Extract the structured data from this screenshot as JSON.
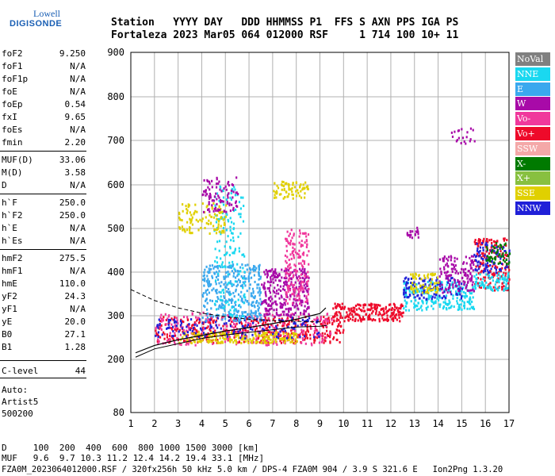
{
  "logo": {
    "line1": "Lowell",
    "line2": "DIGISONDE"
  },
  "header": {
    "line1": "Station   YYYY DAY   DDD HHMMSS P1  FFS S AXN PPS IGA PS",
    "line2": "Fortaleza 2023 Mar05 064 012000 RSF     1 714 100 10+ 11"
  },
  "params": [
    {
      "label": "foF2",
      "value": "9.250"
    },
    {
      "label": "foF1",
      "value": "N/A"
    },
    {
      "label": "foF1p",
      "value": "N/A"
    },
    {
      "label": "foE",
      "value": "N/A"
    },
    {
      "label": "foEp",
      "value": "0.54"
    },
    {
      "label": "fxI",
      "value": "9.65"
    },
    {
      "label": "foEs",
      "value": "N/A"
    },
    {
      "label": "fmin",
      "value": "2.20"
    },
    {
      "label": "MUF(D)",
      "value": "33.06"
    },
    {
      "label": "M(D)",
      "value": "3.58"
    },
    {
      "label": "D",
      "value": "N/A"
    },
    {
      "label": "h`F",
      "value": "250.0"
    },
    {
      "label": "h`F2",
      "value": "250.0"
    },
    {
      "label": "h`E",
      "value": "N/A"
    },
    {
      "label": "h`Es",
      "value": "N/A"
    },
    {
      "label": "hmF2",
      "value": "275.5"
    },
    {
      "label": "hmF1",
      "value": "N/A"
    },
    {
      "label": "hmE",
      "value": "110.0"
    },
    {
      "label": "yF2",
      "value": "24.3"
    },
    {
      "label": "yF1",
      "value": "N/A"
    },
    {
      "label": "yE",
      "value": "20.0"
    },
    {
      "label": "B0",
      "value": "27.1"
    },
    {
      "label": "B1",
      "value": "1.28"
    },
    {
      "label": "C-level",
      "value": "44"
    }
  ],
  "auto": {
    "line1": "Auto:",
    "line2": "Artist5",
    "line3": "500200"
  },
  "legend": [
    {
      "label": "NoVal",
      "color": "#808080"
    },
    {
      "label": "NNE",
      "color": "#1ad8f0"
    },
    {
      "label": "E",
      "color": "#3aa8ee"
    },
    {
      "label": "W",
      "color": "#a80aa8"
    },
    {
      "label": "Vo-",
      "color": "#f0389c"
    },
    {
      "label": "Vo+",
      "color": "#ee0a2a"
    },
    {
      "label": "SSW",
      "color": "#f4a8a8"
    },
    {
      "label": "X-",
      "color": "#007a00"
    },
    {
      "label": "X+",
      "color": "#88c040"
    },
    {
      "label": "SSE",
      "color": "#e0d000"
    },
    {
      "label": "NNW",
      "color": "#2020d8"
    }
  ],
  "bottom": {
    "d_row": "D     100  200  400  600  800 1000 1500 3000 [km]",
    "muf_row": "MUF   9.6  9.7 10.3 11.2 12.4 14.2 19.4 33.1 [MHz]",
    "footer": "FZA0M_2023064012000.RSF / 320fx256h 50 kHz 5.0 km / DPS-4 FZA0M 904 / 3.9 S 321.6 E   Ion2Png 1.3.20"
  },
  "chart_data": {
    "type": "scatter",
    "x_ticks": [
      1,
      2,
      3,
      4,
      5,
      6,
      7,
      8,
      9,
      10,
      11,
      12,
      13,
      14,
      15,
      16,
      17
    ],
    "y_ticks": [
      80,
      200,
      300,
      400,
      500,
      600,
      700,
      800,
      900
    ],
    "xlim": [
      1,
      17
    ],
    "ylim": [
      80,
      900
    ],
    "grid": true,
    "legend_position": "right",
    "trace": {
      "name": "O-trace profile",
      "points": [
        [
          1.2,
          215
        ],
        [
          2,
          232
        ],
        [
          3,
          245
        ],
        [
          4,
          255
        ],
        [
          5,
          265
        ],
        [
          6,
          273
        ],
        [
          7,
          282
        ],
        [
          8,
          292
        ],
        [
          9,
          305
        ],
        [
          9.25,
          318
        ]
      ]
    },
    "profile_line": {
      "points": [
        [
          1.2,
          205
        ],
        [
          2,
          224
        ],
        [
          3,
          236
        ],
        [
          4,
          248
        ],
        [
          5,
          256
        ],
        [
          6,
          262
        ],
        [
          7,
          268
        ],
        [
          8,
          274
        ],
        [
          9,
          276
        ],
        [
          9.3,
          278
        ]
      ]
    },
    "dashed_line": {
      "points": [
        [
          1,
          360
        ],
        [
          2,
          335
        ],
        [
          3,
          318
        ],
        [
          4,
          306
        ],
        [
          5,
          298
        ],
        [
          6,
          292
        ],
        [
          7,
          289
        ],
        [
          8,
          287
        ],
        [
          9,
          286
        ]
      ]
    },
    "clusters": [
      {
        "color": "#ee0a2a",
        "x0": 2.0,
        "x1": 10.0,
        "y0": 240,
        "y1": 300,
        "count": 420
      },
      {
        "color": "#f0389c",
        "x0": 2.0,
        "x1": 9.5,
        "y0": 235,
        "y1": 310,
        "count": 260
      },
      {
        "color": "#e0d000",
        "x0": 3.0,
        "x1": 8.0,
        "y0": 240,
        "y1": 265,
        "count": 200
      },
      {
        "color": "#2020d8",
        "x0": 2.0,
        "x1": 9.0,
        "y0": 250,
        "y1": 300,
        "count": 150
      },
      {
        "color": "#3aa8ee",
        "x0": 4.0,
        "x1": 6.5,
        "y0": 290,
        "y1": 420,
        "count": 340
      },
      {
        "color": "#1ad8f0",
        "x0": 4.5,
        "x1": 5.8,
        "y0": 300,
        "y1": 600,
        "count": 160
      },
      {
        "color": "#a80aa8",
        "x0": 6.5,
        "x1": 8.5,
        "y0": 300,
        "y1": 410,
        "count": 300
      },
      {
        "color": "#f0389c",
        "x0": 7.5,
        "x1": 8.5,
        "y0": 330,
        "y1": 500,
        "count": 170
      },
      {
        "color": "#e0d000",
        "x0": 3.0,
        "x1": 5.0,
        "y0": 490,
        "y1": 560,
        "count": 110
      },
      {
        "color": "#a80aa8",
        "x0": 4.0,
        "x1": 5.5,
        "y0": 540,
        "y1": 620,
        "count": 90
      },
      {
        "color": "#e0d000",
        "x0": 7.0,
        "x1": 8.5,
        "y0": 570,
        "y1": 610,
        "count": 70
      },
      {
        "color": "#ee0a2a",
        "x0": 9.5,
        "x1": 12.5,
        "y0": 290,
        "y1": 330,
        "count": 220
      },
      {
        "color": "#1ad8f0",
        "x0": 12.5,
        "x1": 15.5,
        "y0": 315,
        "y1": 380,
        "count": 230
      },
      {
        "color": "#2020d8",
        "x0": 12.5,
        "x1": 15.0,
        "y0": 340,
        "y1": 390,
        "count": 120
      },
      {
        "color": "#a80aa8",
        "x0": 14.0,
        "x1": 15.5,
        "y0": 355,
        "y1": 440,
        "count": 130
      },
      {
        "color": "#e0d000",
        "x0": 12.8,
        "x1": 14.0,
        "y0": 355,
        "y1": 400,
        "count": 70
      },
      {
        "color": "#ee0a2a",
        "x0": 15.5,
        "x1": 17.0,
        "y0": 360,
        "y1": 480,
        "count": 170
      },
      {
        "color": "#2020d8",
        "x0": 15.5,
        "x1": 17.0,
        "y0": 400,
        "y1": 470,
        "count": 90
      },
      {
        "color": "#1ad8f0",
        "x0": 15.5,
        "x1": 17.0,
        "y0": 360,
        "y1": 400,
        "count": 80
      },
      {
        "color": "#007a00",
        "x0": 16.0,
        "x1": 17.0,
        "y0": 420,
        "y1": 470,
        "count": 50
      },
      {
        "color": "#a80aa8",
        "x0": 14.5,
        "x1": 15.7,
        "y0": 695,
        "y1": 735,
        "count": 20
      },
      {
        "color": "#a80aa8",
        "x0": 12.5,
        "x1": 13.2,
        "y0": 480,
        "y1": 505,
        "count": 20
      }
    ]
  }
}
